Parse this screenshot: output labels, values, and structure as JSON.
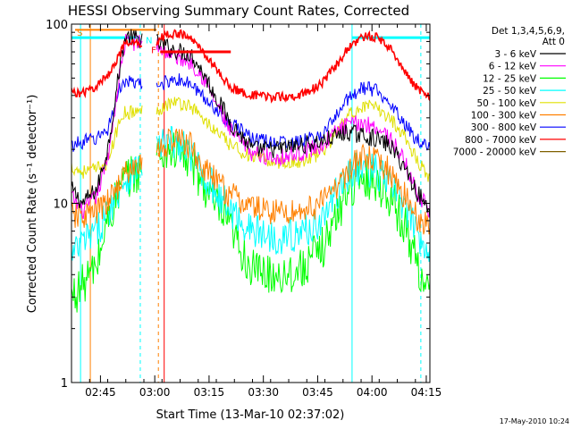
{
  "chart_data": {
    "type": "line",
    "title": "HESSI Observing Summary Count Rates, Corrected",
    "xlabel": "Start Time (13-Mar-10 02:37:02)",
    "ylabel": "Corrected Count Rate (s⁻¹ detector⁻¹)",
    "x_unit": "minutes after 02:37:02",
    "x_range": [
      0,
      99
    ],
    "ylim": [
      1,
      100
    ],
    "y_scale": "log",
    "x_ticks": [
      {
        "label": "02:45",
        "value": 8
      },
      {
        "label": "03:00",
        "value": 23
      },
      {
        "label": "03:15",
        "value": 38
      },
      {
        "label": "03:30",
        "value": 53
      },
      {
        "label": "03:45",
        "value": 68
      },
      {
        "label": "04:00",
        "value": 83
      },
      {
        "label": "04:15",
        "value": 98
      }
    ],
    "y_ticks": [
      {
        "label": "1",
        "value": 1
      },
      {
        "label": "10",
        "value": 10
      },
      {
        "label": "100",
        "value": 100
      }
    ],
    "legend_title": [
      "Det 1,3,4,5,6,9,",
      "Att 0"
    ],
    "legend_position": "right",
    "series": [
      {
        "name": "3 - 6 keV",
        "color": "#000000",
        "noise": 0.05,
        "points": [
          [
            0,
            12
          ],
          [
            3,
            10
          ],
          [
            7,
            12
          ],
          [
            10,
            20
          ],
          [
            14,
            70
          ],
          [
            15,
            85
          ],
          [
            23,
            80
          ],
          [
            28,
            72
          ],
          [
            33,
            68
          ],
          [
            36,
            55
          ],
          [
            44,
            28
          ],
          [
            50,
            20
          ],
          [
            56,
            20
          ],
          [
            63,
            21
          ],
          [
            69,
            22
          ],
          [
            74,
            24
          ],
          [
            76,
            25
          ],
          [
            80,
            24
          ],
          [
            84,
            23
          ],
          [
            88,
            21
          ],
          [
            92,
            16
          ],
          [
            95,
            12
          ],
          [
            99,
            9
          ]
        ]
      },
      {
        "name": "6 - 12 keV",
        "color": "#ff00ff",
        "noise": 0.05,
        "points": [
          [
            0,
            11
          ],
          [
            3,
            9
          ],
          [
            7,
            11
          ],
          [
            10,
            18
          ],
          [
            14,
            65
          ],
          [
            15,
            80
          ],
          [
            23,
            78
          ],
          [
            28,
            66
          ],
          [
            33,
            62
          ],
          [
            36,
            52
          ],
          [
            44,
            25
          ],
          [
            50,
            19
          ],
          [
            56,
            18
          ],
          [
            63,
            19
          ],
          [
            69,
            21
          ],
          [
            74,
            26
          ],
          [
            76,
            27
          ],
          [
            80,
            28
          ],
          [
            84,
            27
          ],
          [
            88,
            23
          ],
          [
            92,
            17
          ],
          [
            95,
            12
          ],
          [
            99,
            9
          ]
        ]
      },
      {
        "name": "12 - 25 keV",
        "color": "#00ff00",
        "noise": 0.12,
        "points": [
          [
            0,
            3
          ],
          [
            3,
            3.5
          ],
          [
            7,
            4.5
          ],
          [
            10,
            8
          ],
          [
            14,
            13
          ],
          [
            23,
            18
          ],
          [
            28,
            20
          ],
          [
            33,
            17
          ],
          [
            36,
            13
          ],
          [
            44,
            7
          ],
          [
            50,
            4.2
          ],
          [
            56,
            4
          ],
          [
            63,
            4.2
          ],
          [
            69,
            5.5
          ],
          [
            74,
            9
          ],
          [
            76,
            12
          ],
          [
            80,
            14
          ],
          [
            84,
            13.5
          ],
          [
            88,
            11
          ],
          [
            92,
            7.5
          ],
          [
            95,
            5
          ],
          [
            99,
            3
          ]
        ]
      },
      {
        "name": "25 - 50 keV",
        "color": "#00ffff",
        "noise": 0.1,
        "points": [
          [
            0,
            5
          ],
          [
            3,
            6
          ],
          [
            7,
            7
          ],
          [
            10,
            9
          ],
          [
            14,
            13
          ],
          [
            23,
            20
          ],
          [
            28,
            22
          ],
          [
            33,
            19
          ],
          [
            36,
            15
          ],
          [
            44,
            9
          ],
          [
            50,
            7
          ],
          [
            56,
            6.5
          ],
          [
            63,
            6.7
          ],
          [
            69,
            8
          ],
          [
            74,
            12
          ],
          [
            76,
            14
          ],
          [
            80,
            16
          ],
          [
            84,
            15
          ],
          [
            88,
            13
          ],
          [
            92,
            9.5
          ],
          [
            95,
            7
          ],
          [
            99,
            5.5
          ]
        ]
      },
      {
        "name": "50 - 100 keV",
        "color": "#e0e000",
        "noise": 0.04,
        "points": [
          [
            0,
            16
          ],
          [
            3,
            15
          ],
          [
            7,
            15.5
          ],
          [
            10,
            17
          ],
          [
            14,
            32
          ],
          [
            23,
            33
          ],
          [
            28,
            37
          ],
          [
            33,
            35
          ],
          [
            36,
            30
          ],
          [
            44,
            21
          ],
          [
            50,
            18
          ],
          [
            56,
            17
          ],
          [
            63,
            17
          ],
          [
            69,
            19
          ],
          [
            74,
            26
          ],
          [
            76,
            30
          ],
          [
            80,
            35
          ],
          [
            84,
            34
          ],
          [
            88,
            30
          ],
          [
            92,
            24
          ],
          [
            95,
            18
          ],
          [
            99,
            14
          ]
        ]
      },
      {
        "name": "100 - 300 keV",
        "color": "#ff8000",
        "noise": 0.08,
        "points": [
          [
            0,
            8.5
          ],
          [
            3,
            8.5
          ],
          [
            7,
            9
          ],
          [
            10,
            10
          ],
          [
            14,
            14
          ],
          [
            23,
            19
          ],
          [
            28,
            23
          ],
          [
            33,
            21
          ],
          [
            36,
            16
          ],
          [
            44,
            11
          ],
          [
            50,
            9.5
          ],
          [
            56,
            9
          ],
          [
            63,
            9
          ],
          [
            69,
            10
          ],
          [
            74,
            13
          ],
          [
            76,
            15
          ],
          [
            80,
            18
          ],
          [
            84,
            17
          ],
          [
            88,
            15
          ],
          [
            92,
            11
          ],
          [
            95,
            8.5
          ],
          [
            99,
            7.5
          ]
        ]
      },
      {
        "name": "300 - 800 keV",
        "color": "#0000ff",
        "noise": 0.04,
        "points": [
          [
            0,
            21
          ],
          [
            3,
            22
          ],
          [
            7,
            23
          ],
          [
            10,
            26
          ],
          [
            14,
            48
          ],
          [
            23,
            44
          ],
          [
            28,
            50
          ],
          [
            33,
            46
          ],
          [
            36,
            40
          ],
          [
            44,
            28
          ],
          [
            50,
            23
          ],
          [
            56,
            22
          ],
          [
            63,
            22
          ],
          [
            69,
            24
          ],
          [
            74,
            32
          ],
          [
            76,
            38
          ],
          [
            80,
            44
          ],
          [
            84,
            43
          ],
          [
            88,
            37
          ],
          [
            92,
            28
          ],
          [
            95,
            23
          ],
          [
            99,
            21
          ]
        ]
      },
      {
        "name": "800 - 7000 keV",
        "color": "#ff0000",
        "noise": 0.025,
        "points": [
          [
            0,
            42
          ],
          [
            3,
            41
          ],
          [
            7,
            45
          ],
          [
            10,
            52
          ],
          [
            14,
            72
          ],
          [
            15,
            78
          ],
          [
            23,
            78
          ],
          [
            26,
            88
          ],
          [
            30,
            88
          ],
          [
            33,
            83
          ],
          [
            36,
            72
          ],
          [
            44,
            44
          ],
          [
            50,
            40
          ],
          [
            56,
            39
          ],
          [
            63,
            40
          ],
          [
            69,
            46
          ],
          [
            74,
            62
          ],
          [
            76,
            72
          ],
          [
            80,
            85
          ],
          [
            84,
            85
          ],
          [
            88,
            74
          ],
          [
            92,
            55
          ],
          [
            95,
            45
          ],
          [
            99,
            39
          ]
        ]
      },
      {
        "name": "7000 - 20000 keV",
        "color": "#806000",
        "noise": 0.0,
        "points": []
      }
    ],
    "annotations": [
      {
        "label": "S",
        "color": "#ff8000"
      },
      {
        "label": "N",
        "color": "#00ffff"
      },
      {
        "label": "F",
        "color": "#ff0000"
      }
    ],
    "footer": "17-May-2010 10:24"
  }
}
